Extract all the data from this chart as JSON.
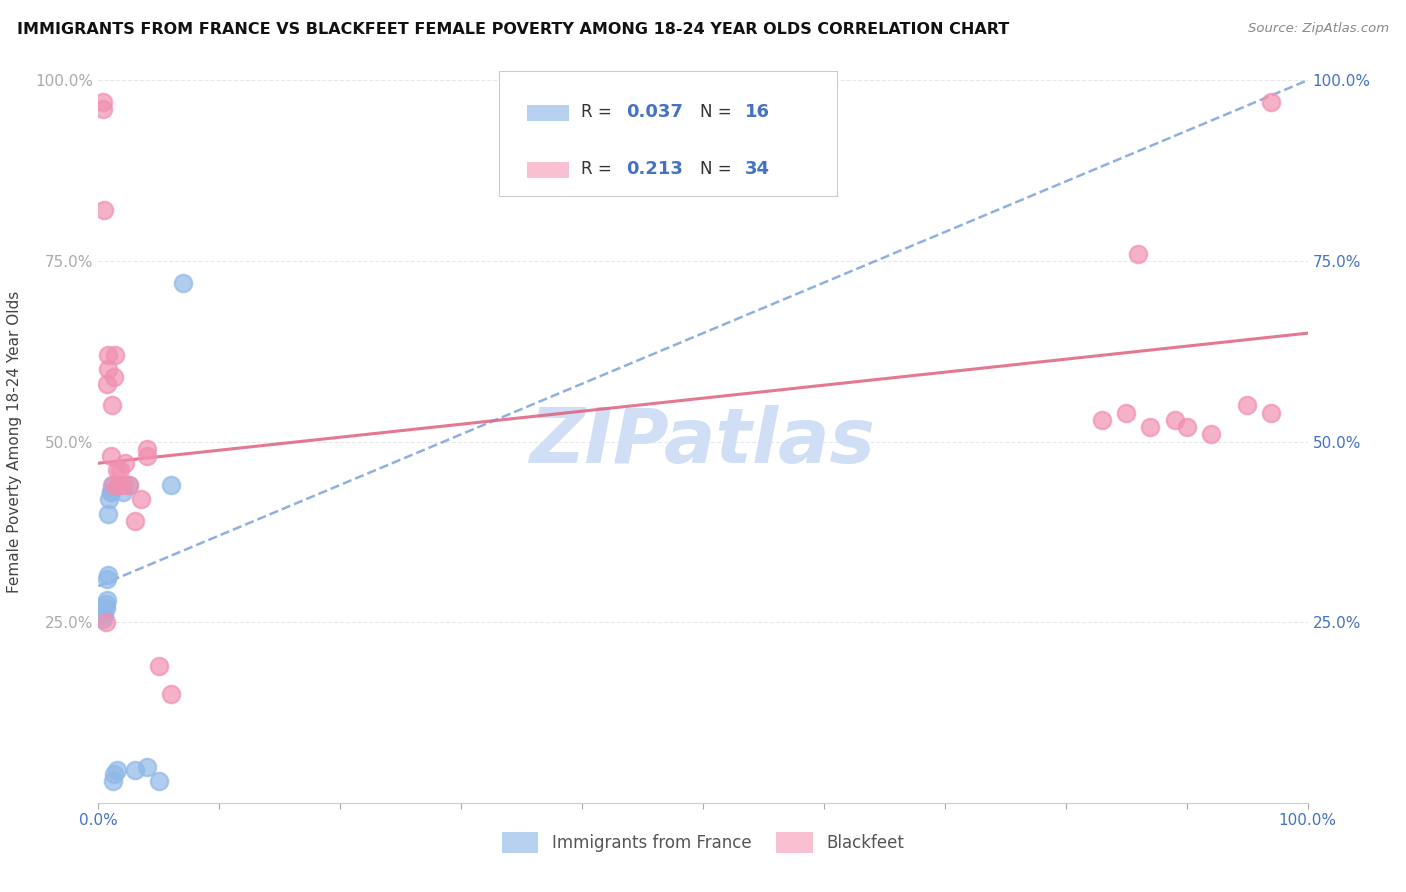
{
  "title": "IMMIGRANTS FROM FRANCE VS BLACKFEET FEMALE POVERTY AMONG 18-24 YEAR OLDS CORRELATION CHART",
  "source": "Source: ZipAtlas.com",
  "ylabel": "Female Poverty Among 18-24 Year Olds",
  "xlim": [
    0,
    1.0
  ],
  "ylim": [
    0,
    1.0
  ],
  "france_color": "#8fb8e8",
  "blackfeet_color": "#f090b0",
  "france_scatter_x": [
    0.004,
    0.005,
    0.006,
    0.006,
    0.007,
    0.007,
    0.008,
    0.008,
    0.009,
    0.01,
    0.01,
    0.011,
    0.012,
    0.013,
    0.015,
    0.02,
    0.025,
    0.03,
    0.04,
    0.05,
    0.06,
    0.07
  ],
  "france_scatter_y": [
    0.255,
    0.26,
    0.27,
    0.275,
    0.28,
    0.31,
    0.315,
    0.4,
    0.42,
    0.43,
    0.43,
    0.44,
    0.03,
    0.04,
    0.045,
    0.43,
    0.44,
    0.045,
    0.05,
    0.03,
    0.44,
    0.72
  ],
  "blackfeet_scatter_x": [
    0.004,
    0.004,
    0.005,
    0.006,
    0.007,
    0.008,
    0.008,
    0.01,
    0.011,
    0.012,
    0.013,
    0.014,
    0.015,
    0.016,
    0.018,
    0.02,
    0.022,
    0.025,
    0.03,
    0.035,
    0.04,
    0.04,
    0.05,
    0.06,
    0.83,
    0.85,
    0.86,
    0.87,
    0.89,
    0.9,
    0.92,
    0.95,
    0.97,
    0.97
  ],
  "blackfeet_scatter_y": [
    0.96,
    0.97,
    0.82,
    0.25,
    0.58,
    0.6,
    0.62,
    0.48,
    0.55,
    0.44,
    0.59,
    0.62,
    0.46,
    0.44,
    0.46,
    0.44,
    0.47,
    0.44,
    0.39,
    0.42,
    0.48,
    0.49,
    0.19,
    0.15,
    0.53,
    0.54,
    0.76,
    0.52,
    0.53,
    0.52,
    0.51,
    0.55,
    0.54,
    0.97
  ],
  "france_trend_x0": 0.0,
  "france_trend_y0": 0.3,
  "france_trend_x1": 1.0,
  "france_trend_y1": 1.0,
  "blackfeet_trend_x0": 0.0,
  "blackfeet_trend_y0": 0.47,
  "blackfeet_trend_x1": 1.0,
  "blackfeet_trend_y1": 0.65,
  "legend_france_color": "#b8d0f0",
  "legend_blackfeet_color": "#f8c0d0",
  "watermark": "ZIPatlas",
  "watermark_color": "#d0dff5",
  "background_color": "#ffffff",
  "grid_color": "#e8e8e8",
  "ytick_positions": [
    0.0,
    0.25,
    0.5,
    0.75,
    1.0
  ],
  "ytick_labels": [
    "",
    "25.0%",
    "50.0%",
    "75.0%",
    "100.0%"
  ],
  "xtick_positions": [
    0.0,
    0.1,
    0.2,
    0.3,
    0.4,
    0.5,
    0.6,
    0.7,
    0.8,
    0.9,
    1.0
  ],
  "xtick_labels": [
    "0.0%",
    "",
    "",
    "",
    "",
    "",
    "",
    "",
    "",
    "",
    "100.0%"
  ]
}
